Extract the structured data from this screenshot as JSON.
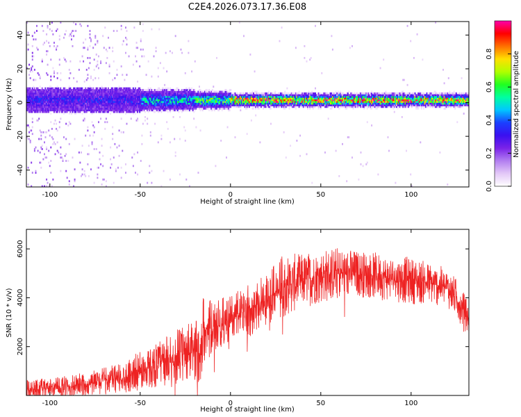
{
  "title": "C2E4.2026.073.17.36.E08",
  "colors": {
    "snr_line": "#ee2222",
    "frame": "#000000",
    "colormap": [
      "#ffffff",
      "#e3c8f7",
      "#b27ef0",
      "#7a22e8",
      "#3a10f0",
      "#1a40ff",
      "#00c8ff",
      "#00ffa0",
      "#20ff20",
      "#b0ff00",
      "#ffe000",
      "#ff7000",
      "#ff0000",
      "#ff00aa"
    ]
  },
  "chart_data": [
    {
      "type": "heatmap",
      "xlabel": "Height of straight line (km)",
      "ylabel": "Frequency (Hz)",
      "xlim": [
        -113,
        132
      ],
      "ylim": [
        -50,
        48
      ],
      "x_ticks": [
        -100,
        -50,
        0,
        50,
        100
      ],
      "y_ticks": [
        -40,
        -20,
        0,
        20,
        40
      ],
      "colorbar": {
        "label": "Normalized spectral amplitude",
        "range": [
          0,
          1
        ],
        "ticks": [
          "0.0",
          "0.2",
          "0.4",
          "0.6",
          "0.8"
        ]
      },
      "ridge": {
        "frequency": 1,
        "segments": [
          {
            "x_start": -113,
            "x_end": -50,
            "half_width_hz": 6,
            "peak_amplitude": 0.35
          },
          {
            "x_start": -50,
            "x_end": -20,
            "half_width_hz": 5,
            "peak_amplitude": 0.55
          },
          {
            "x_start": -20,
            "x_end": 0,
            "half_width_hz": 4,
            "peak_amplitude": 0.7
          },
          {
            "x_start": 0,
            "x_end": 132,
            "half_width_hz": 3,
            "peak_amplitude": 0.95
          }
        ]
      }
    },
    {
      "type": "line",
      "xlabel": "Height of straight line (km)",
      "ylabel": "SNR (10 * v/v)",
      "xlim": [
        -113,
        132
      ],
      "ylim": [
        0,
        6800
      ],
      "x_ticks": [
        -100,
        -50,
        0,
        50,
        100
      ],
      "y_ticks": [
        2000,
        4000,
        6000
      ],
      "series": [
        {
          "x": [
            -113,
            -100,
            -90,
            -80,
            -70,
            -60,
            -50,
            -40,
            -30,
            -20,
            -16,
            -15,
            -10,
            0,
            10,
            20,
            30,
            40,
            50,
            60,
            70,
            80,
            90,
            100,
            110,
            120,
            125,
            132
          ],
          "y": [
            250,
            300,
            350,
            450,
            600,
            750,
            1000,
            1300,
            1600,
            1800,
            1900,
            2800,
            2700,
            3200,
            3500,
            4000,
            4500,
            4700,
            4900,
            5000,
            5000,
            4900,
            4800,
            4700,
            4600,
            4400,
            4000,
            3100
          ],
          "noise_amplitude": [
            250,
            250,
            300,
            300,
            350,
            400,
            500,
            600,
            700,
            800,
            900,
            900,
            700,
            600,
            700,
            700,
            800,
            700,
            700,
            700,
            600,
            600,
            600,
            600,
            550,
            500,
            500,
            450
          ]
        }
      ]
    }
  ]
}
